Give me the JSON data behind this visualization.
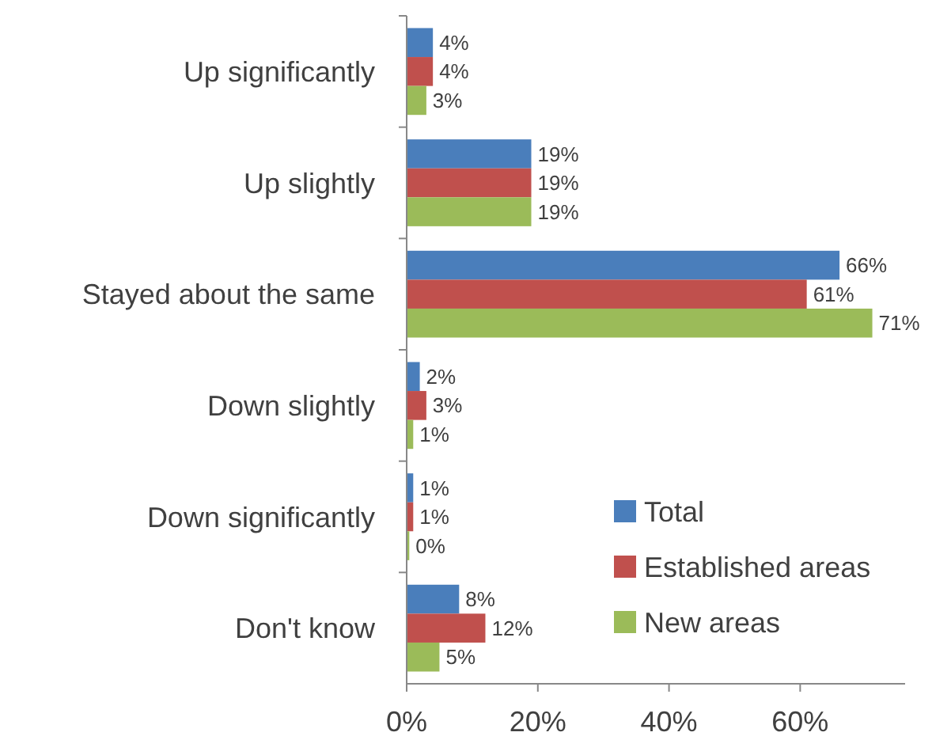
{
  "chart_data": {
    "type": "bar",
    "orientation": "horizontal",
    "categories": [
      "Up significantly",
      "Up slightly",
      "Stayed about the same",
      "Down slightly",
      "Down significantly",
      "Don't know"
    ],
    "series": [
      {
        "name": "Total",
        "color": "#4a7ebb",
        "values": [
          4,
          19,
          66,
          2,
          1,
          8
        ],
        "value_labels": [
          "4%",
          "19%",
          "66%",
          "2%",
          "1%",
          "8%"
        ]
      },
      {
        "name": "Established areas",
        "color": "#c0504d",
        "values": [
          4,
          19,
          61,
          3,
          1,
          12
        ],
        "value_labels": [
          "4%",
          "19%",
          "61%",
          "3%",
          "1%",
          "12%"
        ]
      },
      {
        "name": "New areas",
        "color": "#9bbb59",
        "values": [
          3,
          19,
          71,
          1,
          0.4,
          5
        ],
        "value_labels": [
          "3%",
          "19%",
          "71%",
          "1%",
          "0%",
          "5%"
        ]
      }
    ],
    "xlim": [
      0,
      76
    ],
    "xticks": [
      {
        "value": 0,
        "label": "0%"
      },
      {
        "value": 20,
        "label": "20%"
      },
      {
        "value": 40,
        "label": "40%"
      },
      {
        "value": 60,
        "label": "60%"
      }
    ],
    "grid": false,
    "legend": "bottom right"
  }
}
